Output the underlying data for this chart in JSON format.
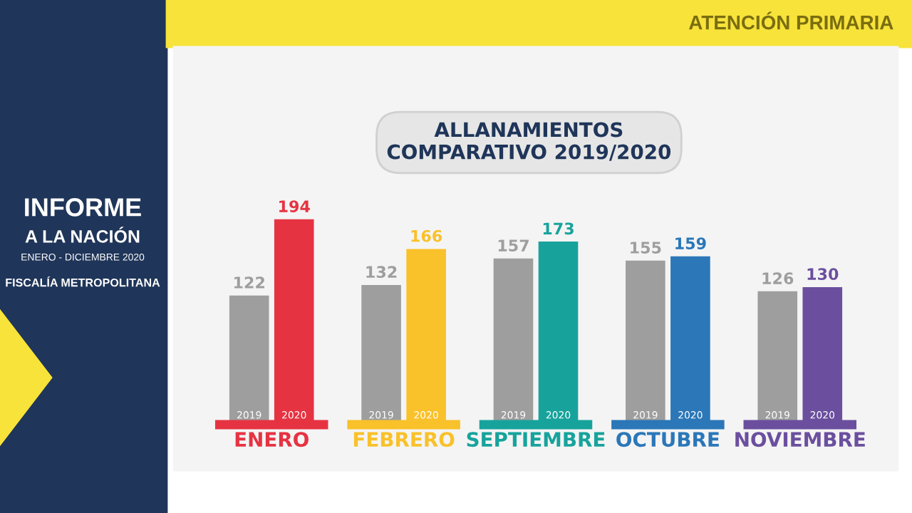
{
  "chart_data": {
    "type": "bar",
    "title": "ALLANAMIENTOS\nCOMPARATIVO 2019/2020",
    "categories": [
      "ENERO",
      "FEBRERO",
      "SEPTIEMBRE",
      "OCTUBRE",
      "NOVIEMBRE"
    ],
    "series": [
      {
        "name": "2019",
        "color": "#9e9e9e",
        "values": [
          122,
          132,
          157,
          155,
          126
        ]
      },
      {
        "name": "2020",
        "colors": [
          "#e63342",
          "#f9c12a",
          "#17a39c",
          "#2b77b8",
          "#6b4f9e"
        ],
        "values": [
          194,
          166,
          173,
          159,
          130
        ]
      }
    ],
    "data_labels": true,
    "legend": false,
    "grid": false,
    "annotations": [
      "ATENCIÓN PRIMARIA",
      "INFORME",
      "A LA NACIÓN",
      "ENERO - DICIEMBRE 2020",
      "FISCALÍA METROPOLITANA"
    ]
  }
}
